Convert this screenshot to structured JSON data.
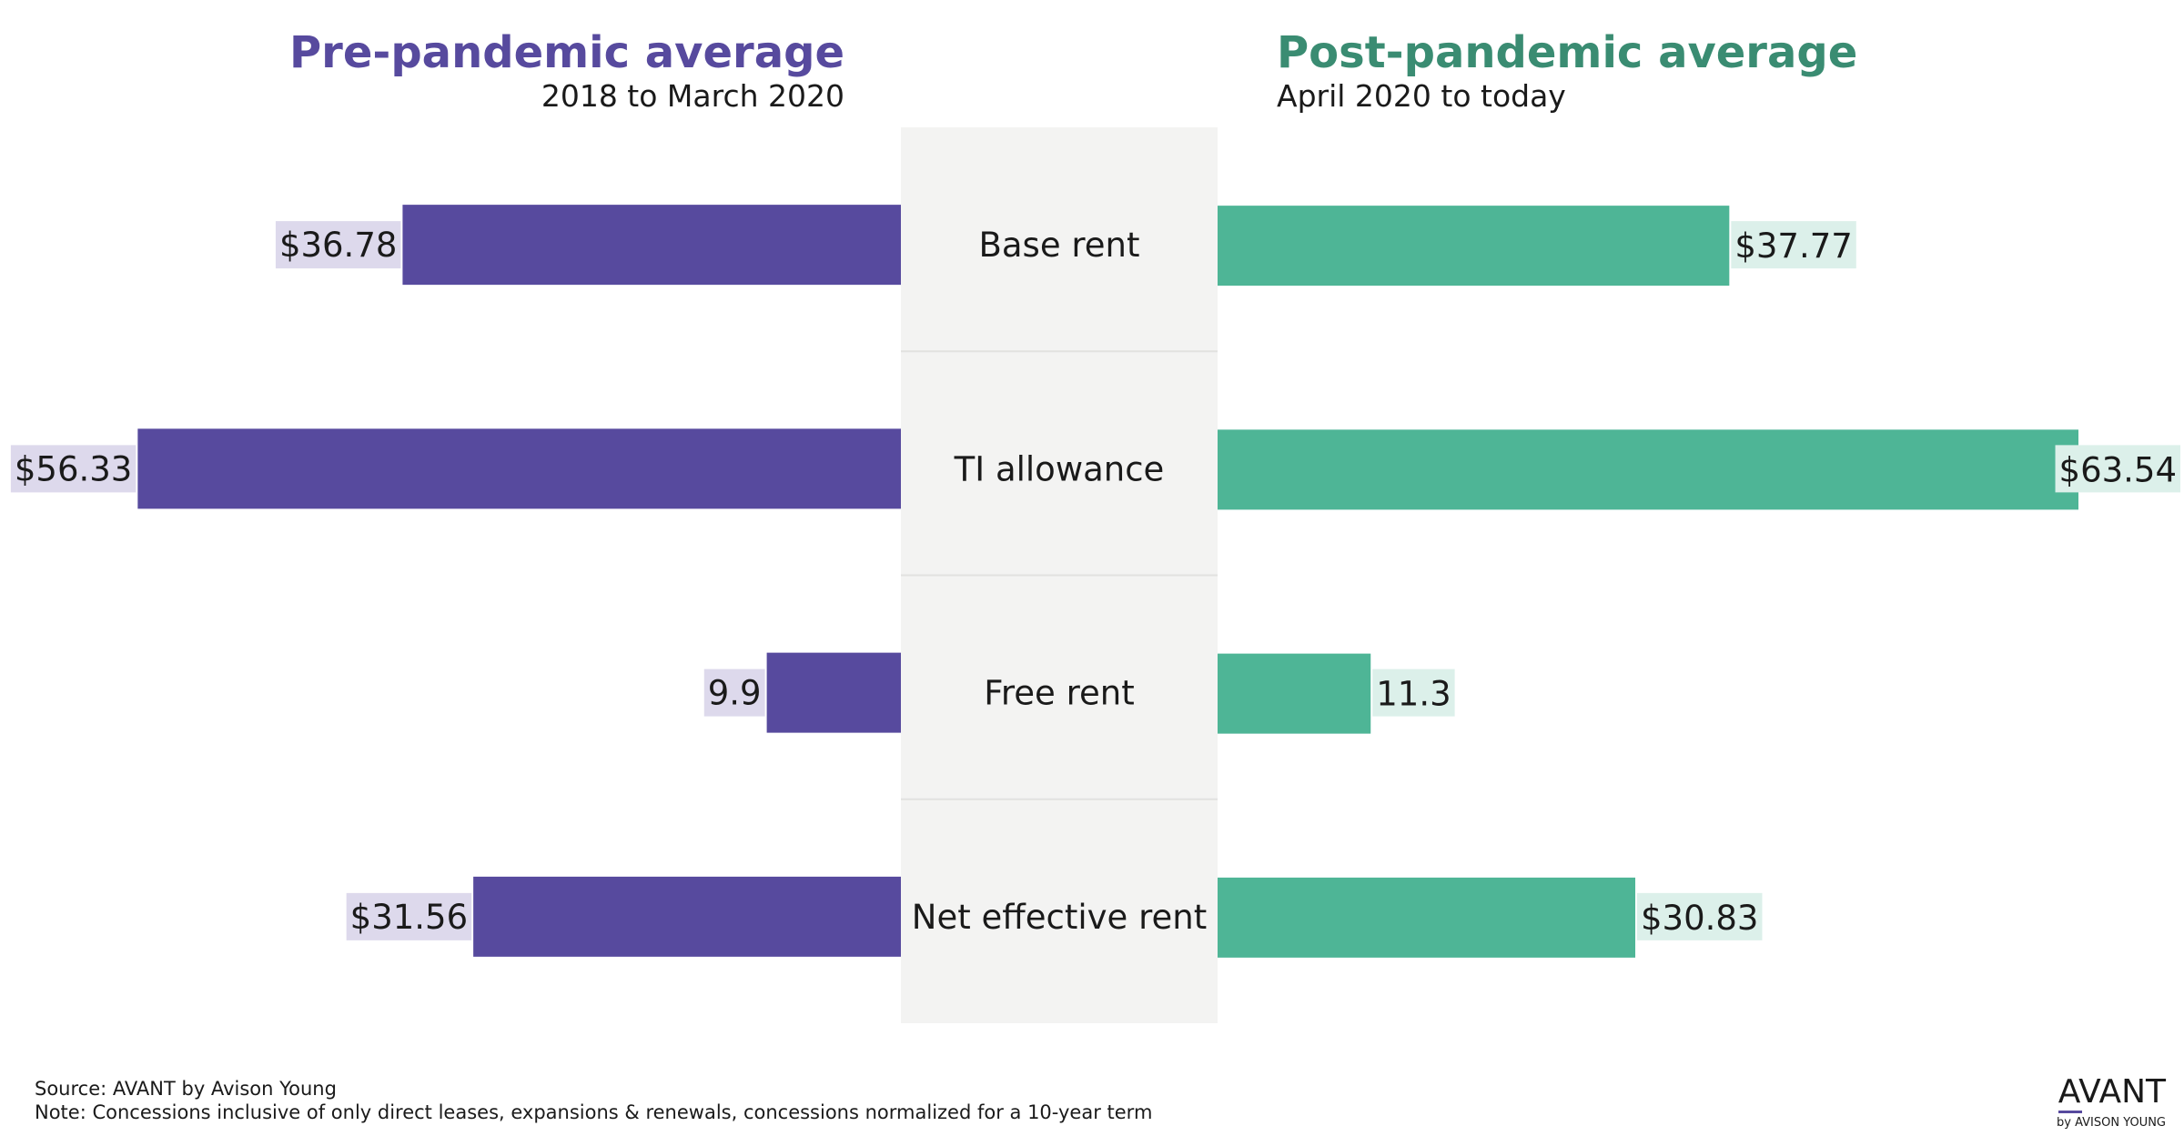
{
  "chart_data": {
    "type": "bar",
    "orientation": "horizontal-butterfly",
    "categories": [
      "Base rent",
      "TI allowance",
      "Free rent",
      "Net effective rent"
    ],
    "series": [
      {
        "name": "Pre-pandemic average",
        "subtitle": "2018 to March 2020",
        "color": "#574a9e",
        "label_bg": "#ddd9ec",
        "side": "left",
        "values": [
          36.78,
          56.33,
          9.9,
          31.56
        ],
        "labels": [
          "$36.78",
          "$56.33",
          "9.9",
          "$31.56"
        ]
      },
      {
        "name": "Post-pandemic average",
        "subtitle": "April 2020 to today",
        "color": "#4eb596",
        "label_bg": "#dcf0ea",
        "title_color": "#3a8c72",
        "side": "right",
        "values": [
          37.77,
          63.54,
          11.3,
          30.83
        ],
        "labels": [
          "$37.77",
          "$63.54",
          "11.3",
          "$30.83"
        ]
      }
    ],
    "xlim": [
      0,
      70
    ],
    "grid": false,
    "legend": "none"
  },
  "footer": {
    "source": "Source: AVANT by Avison Young",
    "note": "Note: Concessions inclusive of only direct leases, expansions & renewals, concessions normalized for a 10-year term"
  },
  "logo": {
    "name": "AVANT",
    "sub": "by AVISON YOUNG"
  }
}
